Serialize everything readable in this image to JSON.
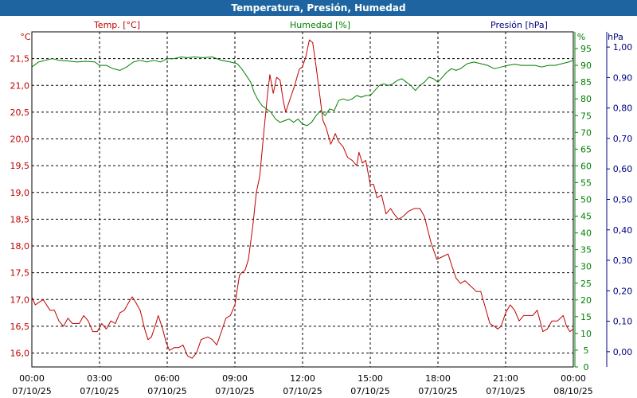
{
  "window": {
    "title": "Temperatura, Presión, Humedad"
  },
  "chart_data": {
    "type": "line",
    "series_labels": {
      "temp": "Temp. [°C]",
      "hum": "Humedad [%]",
      "pres": "Presión [hPa]"
    },
    "units": {
      "temp": "°C",
      "hum": "%",
      "pres": "hPa"
    },
    "colors": {
      "temp": "#c00000",
      "hum": "#008000",
      "pres": "#000080",
      "grid": "#000000"
    },
    "x_ticks": [
      {
        "t": 0,
        "time": "00:00",
        "date": "07/10/25"
      },
      {
        "t": 3,
        "time": "03:00",
        "date": "07/10/25"
      },
      {
        "t": 6,
        "time": "06:00",
        "date": "07/10/25"
      },
      {
        "t": 9,
        "time": "09:00",
        "date": "07/10/25"
      },
      {
        "t": 12,
        "time": "12:00",
        "date": "07/10/25"
      },
      {
        "t": 15,
        "time": "15:00",
        "date": "07/10/25"
      },
      {
        "t": 18,
        "time": "18:00",
        "date": "07/10/25"
      },
      {
        "t": 21,
        "time": "21:00",
        "date": "07/10/25"
      },
      {
        "t": 24,
        "time": "00:00",
        "date": "08/10/25"
      }
    ],
    "xlim": [
      0,
      24
    ],
    "temp_axis": {
      "ylim": [
        15.74,
        22.0
      ],
      "ticks": [
        "16,0",
        "16,5",
        "17,0",
        "17,5",
        "18,0",
        "18,5",
        "19,0",
        "19,5",
        "20,0",
        "20,5",
        "21,0",
        "21,5"
      ],
      "tick_values": [
        16.0,
        16.5,
        17.0,
        17.5,
        18.0,
        18.5,
        19.0,
        19.5,
        20.0,
        20.5,
        21.0,
        21.5
      ]
    },
    "hum_axis": {
      "ylim": [
        0,
        100
      ],
      "ticks": [
        "0",
        "5",
        "10",
        "15",
        "20",
        "25",
        "30",
        "35",
        "40",
        "45",
        "50",
        "55",
        "60",
        "65",
        "70",
        "75",
        "80",
        "85",
        "90",
        "95"
      ],
      "tick_values": [
        0,
        5,
        10,
        15,
        20,
        25,
        30,
        35,
        40,
        45,
        50,
        55,
        60,
        65,
        70,
        75,
        80,
        85,
        90,
        95
      ]
    },
    "pres_axis": {
      "ylim": [
        -0.05,
        1.05
      ],
      "ticks": [
        "0,00",
        "0,10",
        "0,20",
        "0,30",
        "0,40",
        "0,50",
        "0,60",
        "0,70",
        "0,80",
        "0,90",
        "1,00"
      ],
      "tick_values": [
        0,
        0.1,
        0.2,
        0.3,
        0.4,
        0.5,
        0.6,
        0.7,
        0.8,
        0.9,
        1.0
      ]
    },
    "series": [
      {
        "key": "temp",
        "axis": "temp",
        "points": [
          [
            0,
            17.05
          ],
          [
            0.15,
            16.9
          ],
          [
            0.5,
            17.0
          ],
          [
            0.8,
            16.8
          ],
          [
            1.0,
            16.8
          ],
          [
            1.2,
            16.6
          ],
          [
            1.4,
            16.5
          ],
          [
            1.6,
            16.65
          ],
          [
            1.8,
            16.55
          ],
          [
            2.1,
            16.55
          ],
          [
            2.3,
            16.7
          ],
          [
            2.5,
            16.6
          ],
          [
            2.7,
            16.4
          ],
          [
            2.9,
            16.4
          ],
          [
            3.1,
            16.55
          ],
          [
            3.3,
            16.45
          ],
          [
            3.5,
            16.6
          ],
          [
            3.7,
            16.55
          ],
          [
            3.9,
            16.75
          ],
          [
            4.1,
            16.8
          ],
          [
            4.3,
            16.95
          ],
          [
            4.45,
            17.05
          ],
          [
            4.6,
            16.95
          ],
          [
            4.8,
            16.8
          ],
          [
            5.0,
            16.45
          ],
          [
            5.15,
            16.25
          ],
          [
            5.3,
            16.3
          ],
          [
            5.5,
            16.55
          ],
          [
            5.6,
            16.7
          ],
          [
            5.8,
            16.45
          ],
          [
            5.95,
            16.2
          ],
          [
            6.1,
            16.05
          ],
          [
            6.3,
            16.1
          ],
          [
            6.5,
            16.1
          ],
          [
            6.7,
            16.15
          ],
          [
            6.9,
            15.95
          ],
          [
            7.1,
            15.9
          ],
          [
            7.3,
            16.0
          ],
          [
            7.5,
            16.25
          ],
          [
            7.8,
            16.3
          ],
          [
            8.0,
            16.25
          ],
          [
            8.2,
            16.15
          ],
          [
            8.4,
            16.4
          ],
          [
            8.6,
            16.65
          ],
          [
            8.8,
            16.7
          ],
          [
            9.0,
            16.9
          ],
          [
            9.2,
            17.45
          ],
          [
            9.3,
            17.5
          ],
          [
            9.45,
            17.55
          ],
          [
            9.6,
            17.75
          ],
          [
            9.8,
            18.4
          ],
          [
            9.95,
            19.0
          ],
          [
            10.1,
            19.3
          ],
          [
            10.3,
            20.2
          ],
          [
            10.45,
            20.85
          ],
          [
            10.55,
            21.2
          ],
          [
            10.7,
            20.85
          ],
          [
            10.85,
            21.15
          ],
          [
            11.0,
            21.1
          ],
          [
            11.15,
            20.7
          ],
          [
            11.25,
            20.5
          ],
          [
            11.45,
            20.75
          ],
          [
            11.65,
            21.0
          ],
          [
            11.85,
            21.3
          ],
          [
            12.0,
            21.35
          ],
          [
            12.15,
            21.55
          ],
          [
            12.3,
            21.85
          ],
          [
            12.45,
            21.8
          ],
          [
            12.6,
            21.35
          ],
          [
            12.75,
            20.85
          ],
          [
            12.9,
            20.35
          ],
          [
            13.05,
            20.2
          ],
          [
            13.25,
            19.9
          ],
          [
            13.45,
            20.1
          ],
          [
            13.6,
            19.95
          ],
          [
            13.8,
            19.85
          ],
          [
            14.0,
            19.65
          ],
          [
            14.2,
            19.6
          ],
          [
            14.4,
            19.5
          ],
          [
            14.5,
            19.75
          ],
          [
            14.65,
            19.55
          ],
          [
            14.8,
            19.6
          ],
          [
            15.0,
            19.15
          ],
          [
            15.15,
            19.15
          ],
          [
            15.3,
            18.9
          ],
          [
            15.5,
            18.95
          ],
          [
            15.7,
            18.6
          ],
          [
            15.9,
            18.7
          ],
          [
            16.05,
            18.6
          ],
          [
            16.25,
            18.5
          ],
          [
            16.45,
            18.55
          ],
          [
            16.7,
            18.65
          ],
          [
            16.95,
            18.7
          ],
          [
            17.2,
            18.7
          ],
          [
            17.4,
            18.55
          ],
          [
            17.7,
            18.05
          ],
          [
            17.95,
            17.75
          ],
          [
            18.2,
            17.8
          ],
          [
            18.45,
            17.85
          ],
          [
            18.6,
            17.65
          ],
          [
            18.8,
            17.4
          ],
          [
            19.0,
            17.3
          ],
          [
            19.2,
            17.35
          ],
          [
            19.45,
            17.25
          ],
          [
            19.7,
            17.15
          ],
          [
            19.9,
            17.15
          ],
          [
            20.1,
            16.85
          ],
          [
            20.3,
            16.55
          ],
          [
            20.5,
            16.5
          ],
          [
            20.65,
            16.45
          ],
          [
            20.8,
            16.5
          ],
          [
            21.0,
            16.75
          ],
          [
            21.2,
            16.9
          ],
          [
            21.4,
            16.8
          ],
          [
            21.6,
            16.6
          ],
          [
            21.8,
            16.7
          ],
          [
            22.0,
            16.7
          ],
          [
            22.2,
            16.7
          ],
          [
            22.4,
            16.8
          ],
          [
            22.65,
            16.4
          ],
          [
            22.85,
            16.45
          ],
          [
            23.05,
            16.6
          ],
          [
            23.3,
            16.6
          ],
          [
            23.55,
            16.7
          ],
          [
            23.7,
            16.5
          ],
          [
            23.85,
            16.4
          ],
          [
            24.0,
            16.45
          ]
        ]
      },
      {
        "key": "hum",
        "axis": "hum",
        "points": [
          [
            0,
            89.5
          ],
          [
            0.3,
            91.0
          ],
          [
            0.6,
            91.5
          ],
          [
            0.9,
            92.0
          ],
          [
            1.2,
            91.5
          ],
          [
            1.6,
            91.3
          ],
          [
            2.0,
            91.0
          ],
          [
            2.4,
            91.2
          ],
          [
            2.8,
            91.0
          ],
          [
            3.0,
            90.0
          ],
          [
            3.3,
            90.0
          ],
          [
            3.6,
            89.0
          ],
          [
            3.9,
            88.5
          ],
          [
            4.2,
            89.5
          ],
          [
            4.5,
            91.0
          ],
          [
            4.8,
            91.5
          ],
          [
            5.1,
            91.0
          ],
          [
            5.4,
            91.5
          ],
          [
            5.7,
            91.0
          ],
          [
            6.0,
            92.0
          ],
          [
            6.3,
            92.0
          ],
          [
            6.6,
            92.5
          ],
          [
            6.9,
            92.3
          ],
          [
            7.2,
            92.5
          ],
          [
            7.6,
            92.3
          ],
          [
            8.0,
            92.5
          ],
          [
            8.4,
            91.5
          ],
          [
            8.8,
            91.0
          ],
          [
            9.1,
            90.5
          ],
          [
            9.3,
            89.0
          ],
          [
            9.5,
            87.0
          ],
          [
            9.7,
            85.0
          ],
          [
            9.85,
            82.0
          ],
          [
            10.0,
            80.0
          ],
          [
            10.2,
            78.0
          ],
          [
            10.4,
            77.0
          ],
          [
            10.6,
            76.0
          ],
          [
            10.8,
            74.0
          ],
          [
            11.0,
            73.0
          ],
          [
            11.2,
            73.5
          ],
          [
            11.4,
            74.0
          ],
          [
            11.6,
            73.0
          ],
          [
            11.8,
            74.0
          ],
          [
            12.0,
            72.5
          ],
          [
            12.2,
            72.0
          ],
          [
            12.4,
            73.0
          ],
          [
            12.6,
            75.0
          ],
          [
            12.8,
            76.5
          ],
          [
            13.0,
            75.0
          ],
          [
            13.2,
            77.0
          ],
          [
            13.4,
            76.5
          ],
          [
            13.6,
            79.5
          ],
          [
            13.8,
            80.0
          ],
          [
            14.0,
            79.5
          ],
          [
            14.2,
            80.0
          ],
          [
            14.4,
            81.0
          ],
          [
            14.6,
            80.5
          ],
          [
            14.8,
            81.0
          ],
          [
            15.0,
            81.0
          ],
          [
            15.2,
            82.5
          ],
          [
            15.4,
            84.0
          ],
          [
            15.6,
            84.5
          ],
          [
            15.8,
            84.0
          ],
          [
            16.0,
            84.5
          ],
          [
            16.2,
            85.5
          ],
          [
            16.4,
            86.0
          ],
          [
            16.6,
            85.0
          ],
          [
            16.8,
            84.0
          ],
          [
            17.0,
            82.5
          ],
          [
            17.2,
            84.0
          ],
          [
            17.4,
            85.0
          ],
          [
            17.6,
            86.5
          ],
          [
            17.8,
            86.0
          ],
          [
            18.0,
            85.0
          ],
          [
            18.2,
            86.5
          ],
          [
            18.4,
            88.0
          ],
          [
            18.6,
            89.0
          ],
          [
            18.8,
            88.5
          ],
          [
            19.0,
            89.0
          ],
          [
            19.3,
            90.5
          ],
          [
            19.6,
            91.0
          ],
          [
            19.9,
            90.5
          ],
          [
            20.2,
            90.0
          ],
          [
            20.5,
            89.0
          ],
          [
            20.8,
            89.5
          ],
          [
            21.1,
            90.0
          ],
          [
            21.4,
            90.3
          ],
          [
            21.7,
            90.0
          ],
          [
            22.0,
            90.0
          ],
          [
            22.3,
            90.0
          ],
          [
            22.6,
            89.5
          ],
          [
            22.9,
            90.0
          ],
          [
            23.2,
            90.0
          ],
          [
            23.5,
            90.5
          ],
          [
            23.8,
            91.0
          ],
          [
            24.0,
            91.5
          ]
        ]
      }
    ],
    "grid": true,
    "grid_style": "dashed"
  }
}
